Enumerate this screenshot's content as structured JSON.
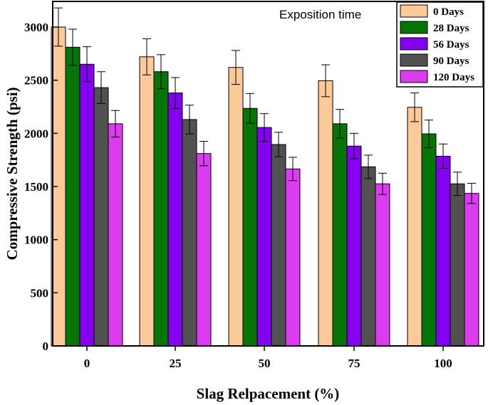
{
  "chart_data": {
    "type": "bar",
    "title": "",
    "xlabel": "Slag Relpacement (%)",
    "ylabel": "Compressive Strength (psi)",
    "ylim": [
      0,
      3250
    ],
    "yticks": [
      0,
      500,
      1000,
      1500,
      2000,
      2500,
      3000
    ],
    "categories": [
      "0",
      "25",
      "50",
      "75",
      "100"
    ],
    "legend_title": "Exposition time",
    "legend_position": "top-right",
    "series": [
      {
        "name": "0 Days",
        "color": "#fcc998",
        "values": [
          3000,
          2720,
          2620,
          2495,
          2245
        ],
        "errors": [
          180,
          170,
          160,
          150,
          135
        ]
      },
      {
        "name": "28 Days",
        "color": "#067406",
        "values": [
          2810,
          2580,
          2235,
          2090,
          1995
        ],
        "errors": [
          170,
          160,
          140,
          135,
          130
        ]
      },
      {
        "name": "56 Days",
        "color": "#8400f0",
        "values": [
          2650,
          2380,
          2055,
          1880,
          1785
        ],
        "errors": [
          165,
          145,
          130,
          120,
          115
        ]
      },
      {
        "name": "90 Days",
        "color": "#515151",
        "values": [
          2430,
          2130,
          1895,
          1685,
          1525
        ],
        "errors": [
          150,
          135,
          115,
          110,
          110
        ]
      },
      {
        "name": "120 Days",
        "color": "#dc3cf0",
        "values": [
          2090,
          1810,
          1665,
          1525,
          1435
        ],
        "errors": [
          125,
          115,
          110,
          100,
          95
        ]
      }
    ]
  }
}
